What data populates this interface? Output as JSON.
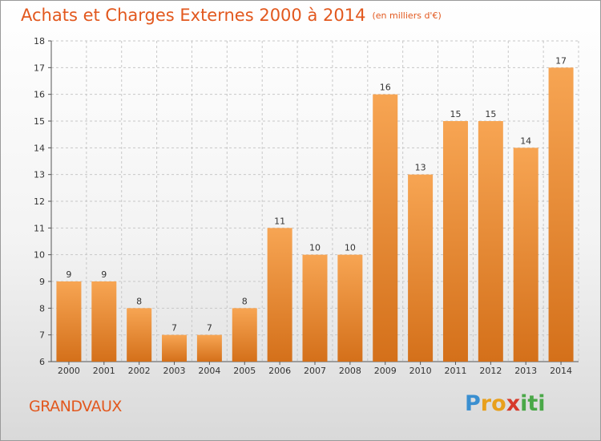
{
  "title": "Achats et Charges Externes 2000 à 2014",
  "subtitle": "(en milliers d'€)",
  "location_label": "GRANDVAUX",
  "logo": {
    "text": "Proxiti",
    "letters": [
      {
        "ch": "P",
        "color": "#3a8fd0"
      },
      {
        "ch": "r",
        "color": "#e8a01c"
      },
      {
        "ch": "o",
        "color": "#e8a01c"
      },
      {
        "ch": "x",
        "color": "#d73a2a"
      },
      {
        "ch": "i",
        "color": "#4aa848"
      },
      {
        "ch": "t",
        "color": "#4aa848"
      },
      {
        "ch": "i",
        "color": "#4aa848"
      }
    ]
  },
  "chart_data": {
    "type": "bar",
    "categories": [
      "2000",
      "2001",
      "2002",
      "2003",
      "2004",
      "2005",
      "2006",
      "2007",
      "2008",
      "2009",
      "2010",
      "2011",
      "2012",
      "2013",
      "2014"
    ],
    "values": [
      9,
      9,
      8,
      7,
      7,
      8,
      11,
      10,
      10,
      16,
      13,
      15,
      15,
      14,
      17
    ],
    "ylim": [
      6,
      18
    ],
    "yticks": [
      6,
      7,
      8,
      9,
      10,
      11,
      12,
      13,
      14,
      15,
      16,
      17,
      18
    ],
    "grid": true,
    "bar_color": "#f0892f"
  }
}
